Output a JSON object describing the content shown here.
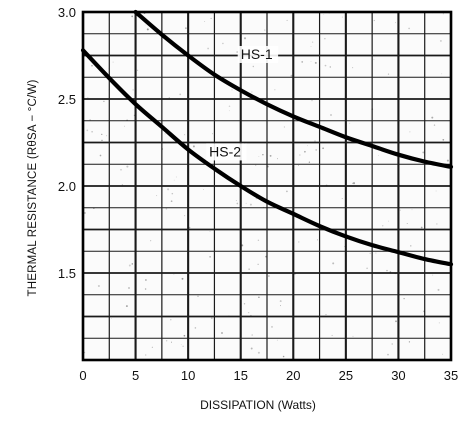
{
  "chart_data": {
    "type": "line",
    "title": "",
    "xlabel": "DISSIPATION (Watts)",
    "ylabel": "THERMAL RESISTANCE (RθSA − °C/W)",
    "xlim": [
      0,
      35
    ],
    "ylim": [
      1.0,
      3.0
    ],
    "x_ticks": [
      "0",
      "5",
      "10",
      "15",
      "20",
      "25",
      "30",
      "35"
    ],
    "y_ticks": [
      "1.5",
      "2.0",
      "2.5",
      "3.0"
    ],
    "grid": true,
    "series": [
      {
        "name": "HS-1",
        "x": [
          5,
          7.5,
          10,
          12.5,
          15,
          17.5,
          20,
          22.5,
          25,
          27.5,
          30,
          32.5,
          35
        ],
        "y": [
          3.0,
          2.87,
          2.75,
          2.64,
          2.55,
          2.47,
          2.4,
          2.34,
          2.28,
          2.23,
          2.18,
          2.14,
          2.11
        ]
      },
      {
        "name": "HS-2",
        "x": [
          0,
          2.5,
          5,
          7.5,
          10,
          12.5,
          15,
          17.5,
          20,
          22.5,
          25,
          27.5,
          30,
          32.5,
          35
        ],
        "y": [
          2.78,
          2.62,
          2.47,
          2.34,
          2.21,
          2.1,
          2.0,
          1.91,
          1.84,
          1.77,
          1.71,
          1.66,
          1.62,
          1.58,
          1.55
        ]
      }
    ]
  }
}
